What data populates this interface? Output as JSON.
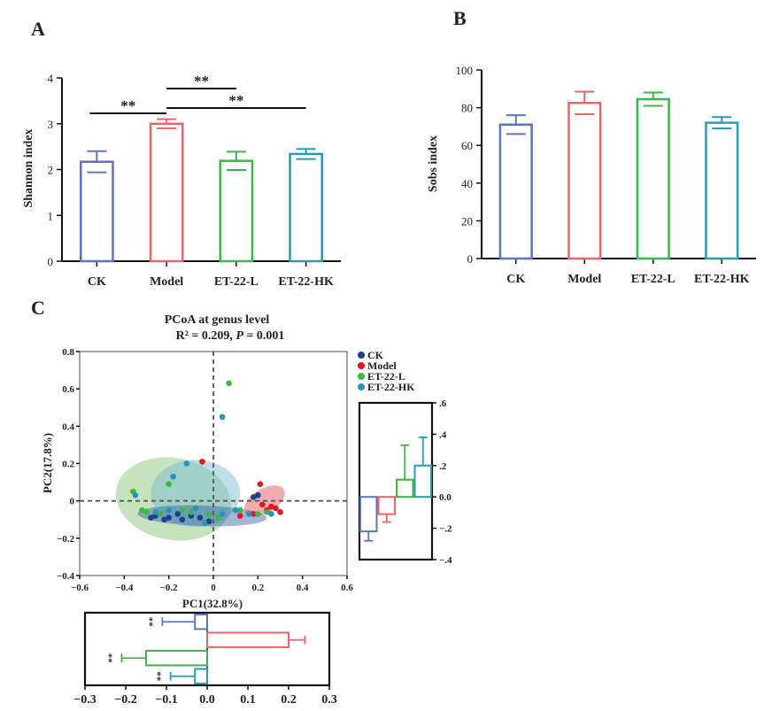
{
  "panels": {
    "a": "A",
    "b": "B",
    "c": "C"
  },
  "colors": {
    "CK": "#5b74c4",
    "Model": "#e8666b",
    "ET-22-L": "#3cb54a",
    "ET-22-HK": "#2a9bb0",
    "CK_point": "#1d3f8f",
    "Model_point": "#e0181f",
    "L_point": "#3cb54a",
    "HK_point": "#2a93b5"
  },
  "chart_data": [
    {
      "type": "bar",
      "panel": "A",
      "categories": [
        "CK",
        "Model",
        "ET-22-L",
        "ET-22-HK"
      ],
      "values": [
        2.17,
        3.0,
        2.19,
        2.34
      ],
      "errors": [
        0.23,
        0.1,
        0.2,
        0.11
      ],
      "ylabel": "Shannon index",
      "ylim": [
        0,
        4
      ],
      "yticks": [
        0,
        1,
        2,
        3,
        4
      ],
      "significance": [
        {
          "from": "CK",
          "to": "Model",
          "label": "**"
        },
        {
          "from": "Model",
          "to": "ET-22-L",
          "label": "**"
        },
        {
          "from": "Model",
          "to": "ET-22-HK",
          "label": "**"
        }
      ]
    },
    {
      "type": "bar",
      "panel": "B",
      "categories": [
        "CK",
        "Model",
        "ET-22-L",
        "ET-22-HK"
      ],
      "values": [
        71,
        82.5,
        84.5,
        72
      ],
      "errors": [
        5,
        6,
        3.5,
        3
      ],
      "ylabel": "Sobs index",
      "ylim": [
        0,
        100
      ],
      "yticks": [
        0,
        20,
        40,
        60,
        80,
        100
      ]
    },
    {
      "type": "scatter",
      "panel": "C",
      "title": "PCoA at  genus level",
      "subtitle_r2": "R² = 0.209, ",
      "subtitle_p_label": "P",
      "subtitle_p_value": " = 0.001",
      "xlabel": "PC1(32.8%)",
      "ylabel": "PC2(17.8%)",
      "xlim": [
        -0.6,
        0.6
      ],
      "ylim": [
        -0.4,
        0.8
      ],
      "xticks": [
        -0.6,
        -0.4,
        -0.2,
        0,
        0.2,
        0.4,
        0.6
      ],
      "yticks": [
        -0.4,
        -0.2,
        0,
        0.2,
        0.4,
        0.6,
        0.8
      ],
      "legend": [
        "CK",
        "Model",
        "ET-22-L",
        "ET-22-HK"
      ],
      "legend_position": "right",
      "series": [
        {
          "name": "CK",
          "points": [
            [
              -0.28,
              -0.09
            ],
            [
              -0.26,
              -0.08
            ],
            [
              -0.22,
              -0.1
            ],
            [
              -0.2,
              -0.09
            ],
            [
              -0.16,
              -0.07
            ],
            [
              -0.14,
              -0.1
            ],
            [
              -0.1,
              -0.08
            ],
            [
              -0.06,
              -0.09
            ],
            [
              -0.02,
              -0.11
            ],
            [
              0.18,
              0.02
            ],
            [
              0.2,
              0.03
            ]
          ]
        },
        {
          "name": "Model",
          "points": [
            [
              -0.05,
              0.21
            ],
            [
              0.12,
              -0.08
            ],
            [
              0.18,
              -0.07
            ],
            [
              0.21,
              0.09
            ],
            [
              0.22,
              -0.02
            ],
            [
              0.24,
              -0.05
            ],
            [
              0.26,
              -0.03
            ],
            [
              0.28,
              -0.04
            ],
            [
              0.3,
              -0.06
            ]
          ]
        },
        {
          "name": "ET-22-L",
          "points": [
            [
              -0.36,
              0.05
            ],
            [
              -0.32,
              -0.05
            ],
            [
              -0.3,
              -0.06
            ],
            [
              -0.24,
              -0.07
            ],
            [
              -0.2,
              0.09
            ],
            [
              -0.14,
              -0.05
            ],
            [
              -0.1,
              -0.06
            ],
            [
              -0.02,
              -0.07
            ],
            [
              0.02,
              -0.09
            ],
            [
              0.07,
              0.63
            ],
            [
              0.12,
              -0.05
            ],
            [
              0.2,
              -0.07
            ],
            [
              0.24,
              -0.06
            ]
          ]
        },
        {
          "name": "ET-22-HK",
          "points": [
            [
              -0.35,
              0.03
            ],
            [
              -0.26,
              -0.06
            ],
            [
              -0.2,
              -0.05
            ],
            [
              -0.18,
              0.13
            ],
            [
              -0.12,
              0.2
            ],
            [
              -0.08,
              -0.04
            ],
            [
              -0.04,
              -0.12
            ],
            [
              0.04,
              0.45
            ],
            [
              0.04,
              -0.07
            ],
            [
              0.1,
              -0.05
            ],
            [
              0.16,
              -0.07
            ],
            [
              0.26,
              -0.07
            ]
          ]
        }
      ],
      "ellipses": [
        {
          "name": "ET-22-L",
          "cx": -0.18,
          "cy": 0.01,
          "rx": 0.26,
          "ry": 0.22,
          "angle": 10
        },
        {
          "name": "ET-22-HK",
          "cx": -0.08,
          "cy": 0.04,
          "rx": 0.2,
          "ry": 0.18,
          "angle": 0
        },
        {
          "name": "CK",
          "cx": -0.05,
          "cy": -0.08,
          "rx": 0.29,
          "ry": 0.055,
          "angle": 2
        },
        {
          "name": "Model",
          "cx": 0.23,
          "cy": 0.0,
          "rx": 0.1,
          "ry": 0.065,
          "angle": -30
        }
      ],
      "pc2_boxplot": {
        "ylim": [
          -0.4,
          0.6
        ],
        "yticks": [
          -0.4,
          -0.2,
          0.0,
          0.2,
          0.4,
          0.6
        ],
        "values": [
          -0.22,
          -0.11,
          0.11,
          0.2
        ],
        "errors": [
          0.06,
          0.05,
          0.22,
          0.18
        ]
      },
      "pc1_boxplot": {
        "xlim": [
          -0.3,
          0.3
        ],
        "xticks": [
          -0.3,
          -0.2,
          -0.1,
          0.0,
          0.1,
          0.2,
          0.3
        ],
        "values": [
          -0.03,
          0.2,
          -0.15,
          -0.03
        ],
        "errors": [
          0.08,
          0.04,
          0.06,
          0.06
        ],
        "stars": [
          "**",
          "",
          "**",
          "**"
        ]
      }
    }
  ]
}
